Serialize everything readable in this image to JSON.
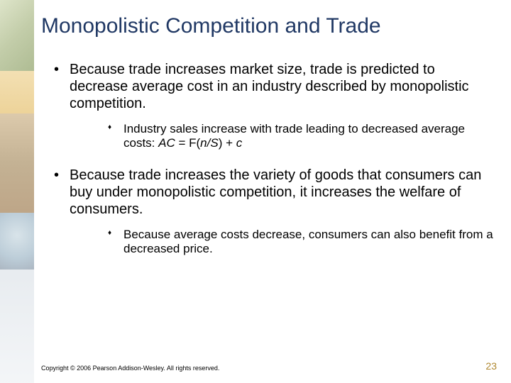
{
  "title": "Monopolistic Competition and Trade",
  "bullets": [
    {
      "text": "Because trade increases market size, trade is predicted to decrease average cost in an industry described by monopolistic competition.",
      "sub": {
        "prefix": "Industry sales increase with trade leading to decreased average costs: ",
        "formula_ac": "AC",
        "formula_eq": " = F(",
        "formula_ns": "n/S",
        "formula_end": ") + ",
        "formula_c": "c"
      }
    },
    {
      "text": "Because trade increases the variety of goods that consumers can buy under monopolistic competition, it increases the welfare of consumers.",
      "sub": {
        "text": "Because average costs decrease, consumers can also benefit from a decreased price."
      }
    }
  ],
  "copyright": "Copyright © 2006 Pearson Addison-Wesley. All rights reserved.",
  "page_number": "23",
  "colors": {
    "title": "#203864",
    "body": "#000000",
    "pagenum": "#b08830"
  },
  "fonts": {
    "title_size": 30,
    "body_size": 20,
    "sub_size": 17,
    "copyright_size": 9,
    "pagenum_size": 14
  }
}
